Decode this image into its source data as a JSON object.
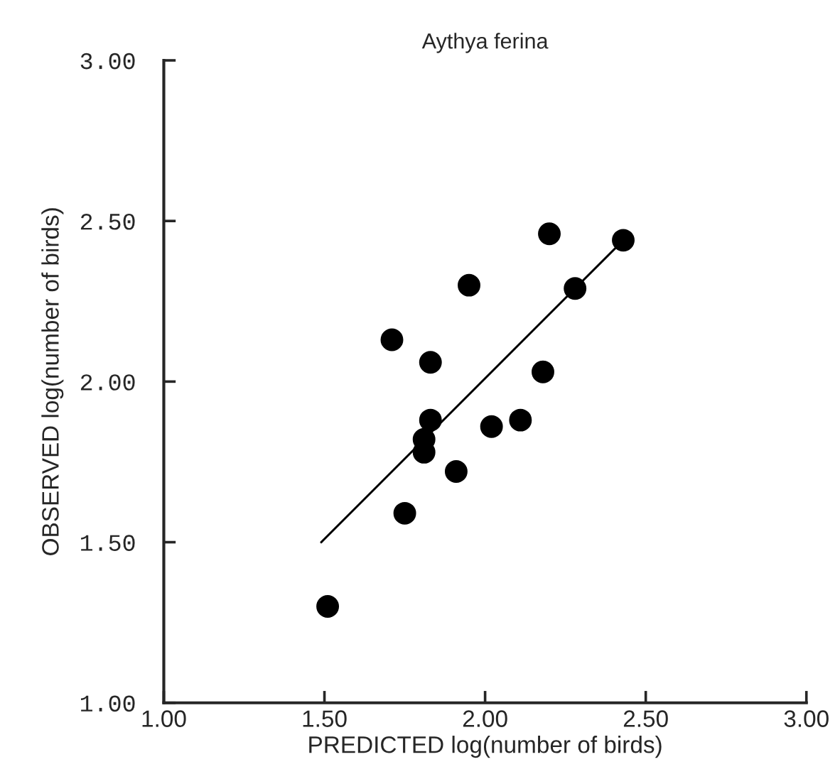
{
  "chart_data": {
    "type": "scatter",
    "title": "Aythya ferina",
    "xlabel": "PREDICTED log(number of birds)",
    "ylabel": "OBSERVED log(number of birds)",
    "series": [
      {
        "color": "#000000",
        "marker": "circle",
        "x": [
          2.2,
          2.43,
          1.95,
          2.28,
          1.71,
          1.83,
          2.18,
          1.83,
          2.02,
          2.11,
          1.81,
          1.81,
          1.91,
          1.75,
          1.51
        ],
        "values": [
          2.46,
          2.44,
          2.3,
          2.29,
          2.13,
          2.06,
          2.03,
          1.88,
          1.86,
          1.88,
          1.82,
          1.78,
          1.72,
          1.59,
          1.3
        ]
      },
      {
        "type": "line",
        "color": "#000000",
        "marker": "none",
        "x": [
          1.49,
          2.43
        ],
        "values": [
          1.5,
          2.44
        ]
      }
    ],
    "xlim": [
      1.0,
      3.0
    ],
    "ylim": [
      1.0,
      3.0
    ],
    "xticks": [
      {
        "value": 1.0,
        "label": "1.00"
      },
      {
        "value": 1.5,
        "label": "1.50"
      },
      {
        "value": 2.0,
        "label": "2.00"
      },
      {
        "value": 2.5,
        "label": "2.50"
      },
      {
        "value": 3.0,
        "label": "3.00"
      }
    ],
    "yticks": [
      {
        "value": 1.0,
        "label": "1.00"
      },
      {
        "value": 1.5,
        "label": "1.50"
      },
      {
        "value": 2.0,
        "label": "2.00"
      },
      {
        "value": 2.5,
        "label": "2.50"
      },
      {
        "value": 3.0,
        "label": "3.00"
      }
    ],
    "grid": false,
    "legend": false
  }
}
